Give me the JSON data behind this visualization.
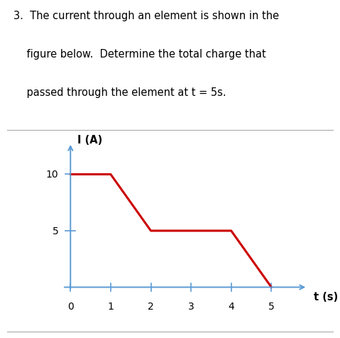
{
  "title_lines": [
    "3.  The current through an element is shown in the",
    "    figure below.  Determine the total charge that",
    "    passed through the element at t = 5s."
  ],
  "line_x": [
    0,
    1,
    2,
    3,
    4,
    5
  ],
  "line_y": [
    10,
    10,
    5,
    5,
    5,
    0
  ],
  "line_color": "#cc0000",
  "line_width": 2.2,
  "axis_color": "#5b9bd5",
  "ylabel": "I (A)",
  "xlabel": "t (s)",
  "xticks": [
    0,
    1,
    2,
    3,
    4,
    5
  ],
  "yticks": [
    5,
    10
  ],
  "xlim": [
    -0.4,
    6.2
  ],
  "ylim": [
    -1.5,
    13.5
  ],
  "title_fontsize": 10.5,
  "tick_fontsize": 10,
  "label_fontsize": 10.5,
  "background_color": "#ffffff",
  "separator_color": "#aaaaaa",
  "text_color": "#000000"
}
